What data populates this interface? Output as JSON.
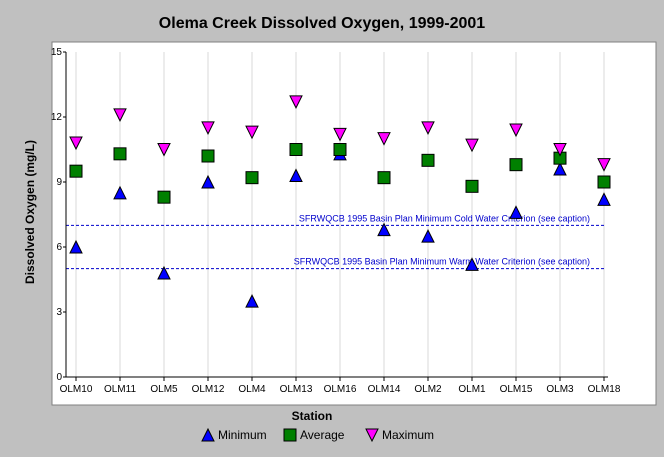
{
  "chart_data": {
    "type": "scatter",
    "title": "Olema Creek Dissolved Oxygen, 1999-2001",
    "xlabel": "Station",
    "ylabel": "Dissolved Oxygen (mg/L)",
    "ylim": [
      0,
      15
    ],
    "yticks": [
      "0",
      "3",
      "6",
      "9",
      "12",
      "15"
    ],
    "ytick_values": [
      0,
      3,
      6,
      9,
      12,
      15
    ],
    "grid": "vertical",
    "legend_position": "bottom",
    "categories": [
      "OLM10",
      "OLM11",
      "OLM5",
      "OLM12",
      "OLM4",
      "OLM13",
      "OLM16",
      "OLM14",
      "OLM2",
      "OLM1",
      "OLM15",
      "OLM3",
      "OLM18"
    ],
    "series": [
      {
        "name": "Minimum",
        "marker": "triangle-up",
        "color": "#0000ff",
        "values": [
          6.0,
          8.5,
          4.8,
          9.0,
          3.5,
          9.3,
          10.3,
          6.8,
          6.5,
          5.2,
          7.6,
          9.6,
          8.2
        ]
      },
      {
        "name": "Average",
        "marker": "square",
        "color": "#008000",
        "values": [
          9.5,
          10.3,
          8.3,
          10.2,
          9.2,
          10.5,
          10.5,
          9.2,
          10.0,
          8.8,
          9.8,
          10.1,
          9.0
        ]
      },
      {
        "name": "Maximum",
        "marker": "triangle-down",
        "color": "#ff00ff",
        "values": [
          10.8,
          12.1,
          10.5,
          11.5,
          11.3,
          12.7,
          11.2,
          11.0,
          11.5,
          10.7,
          11.4,
          10.5,
          9.8
        ]
      }
    ],
    "reference_lines": [
      {
        "label": "SFRWQCB 1995 Basin Plan Minimum Cold Water Criterion (see caption)",
        "value": 7.0,
        "color": "#0000cc"
      },
      {
        "label": "SFRWQCB 1995 Basin Plan Minimum Warm Water Criterion (see caption)",
        "value": 5.0,
        "color": "#0000cc"
      }
    ]
  }
}
